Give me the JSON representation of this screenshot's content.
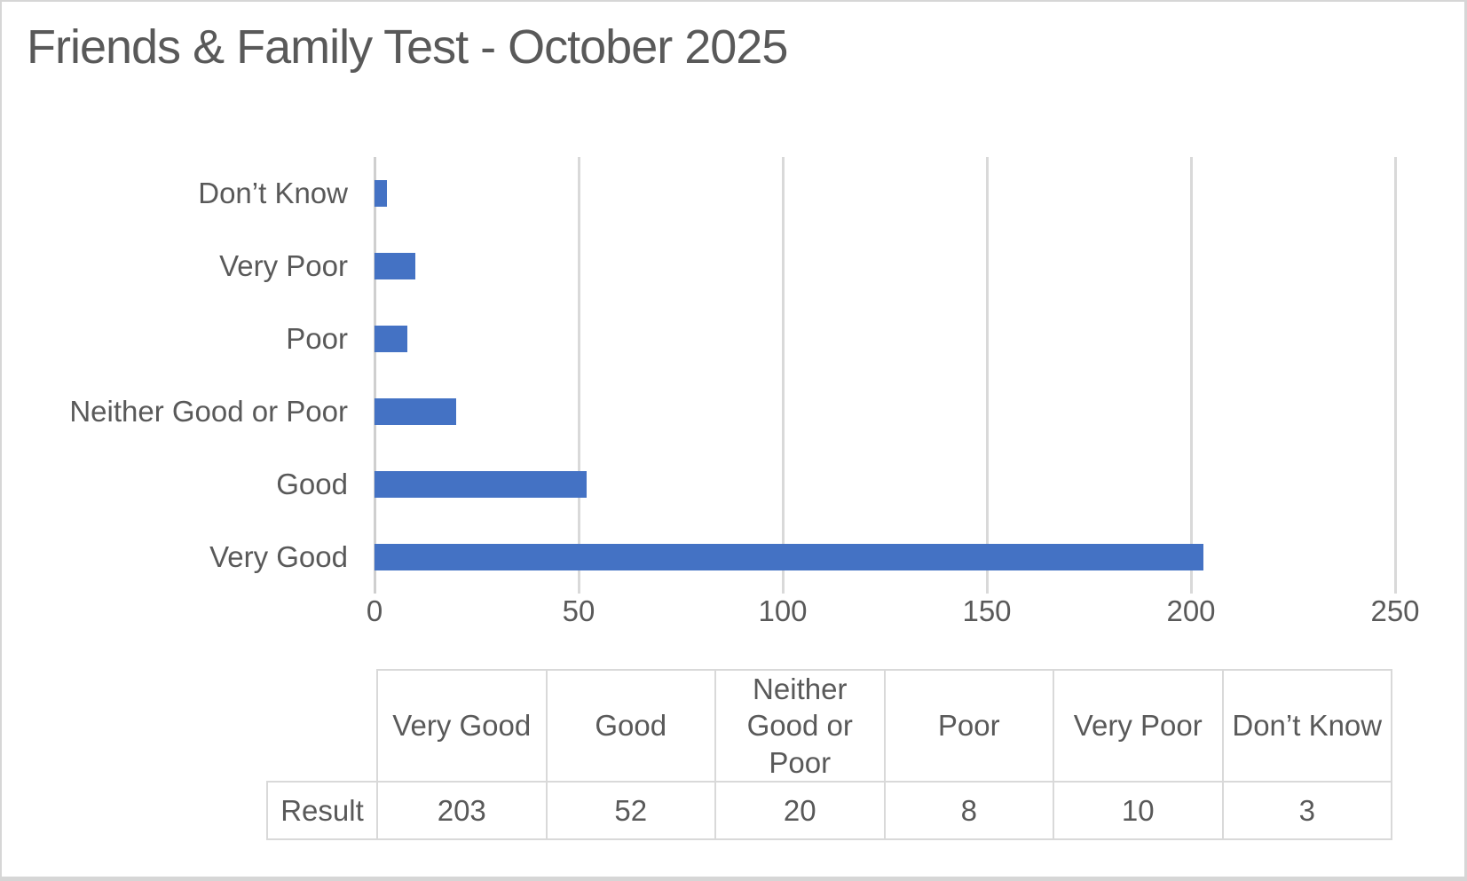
{
  "page": {
    "background": "#ffffff",
    "border_color": "#d6d6d6"
  },
  "chart_data": {
    "type": "bar",
    "orientation": "horizontal",
    "title": "Friends & Family Test - October 2025",
    "xlabel": "",
    "ylabel": "",
    "categories": [
      "Very Good",
      "Good",
      "Neither Good or Poor",
      "Poor",
      "Very Poor",
      "Don’t Know"
    ],
    "values": [
      203,
      52,
      20,
      8,
      10,
      3
    ],
    "series_name": "Result",
    "xlim": [
      0,
      250
    ],
    "xticks": [
      0,
      50,
      100,
      150,
      200,
      250
    ],
    "grid": true,
    "legend": "none",
    "bar_color": "#4472c4",
    "grid_color": "#d9d9d9",
    "axis_line_color": "#cfcfcf",
    "text_color": "#595959",
    "category_order_top_to_bottom": [
      "Don’t Know",
      "Very Poor",
      "Poor",
      "Neither Good or Poor",
      "Good",
      "Very Good"
    ]
  },
  "table": {
    "row_header": "Result",
    "columns": [
      "Very Good",
      "Good",
      "Neither Good or Poor",
      "Poor",
      "Very Poor",
      "Don’t Know"
    ],
    "values": [
      "203",
      "52",
      "20",
      "8",
      "10",
      "3"
    ]
  }
}
